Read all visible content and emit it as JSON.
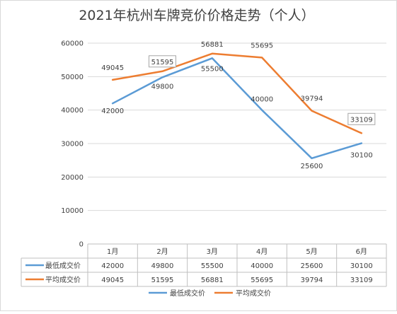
{
  "chart_data": {
    "type": "line",
    "title": "2021年杭州车牌竞价价格走势（个人）",
    "categories": [
      "1月",
      "2月",
      "3月",
      "4月",
      "5月",
      "6月"
    ],
    "ylim": [
      0,
      60000
    ],
    "yticks": [
      0,
      10000,
      20000,
      30000,
      40000,
      50000,
      60000
    ],
    "grid": true,
    "legend_position": "bottom",
    "series": [
      {
        "name": "最低成交价",
        "color": "#5B9BD5",
        "values": [
          42000,
          49800,
          55500,
          40000,
          25600,
          30100
        ]
      },
      {
        "name": "平均成交价",
        "color": "#ED7D31",
        "values": [
          49045,
          51595,
          56881,
          55695,
          39794,
          33109
        ]
      }
    ]
  }
}
